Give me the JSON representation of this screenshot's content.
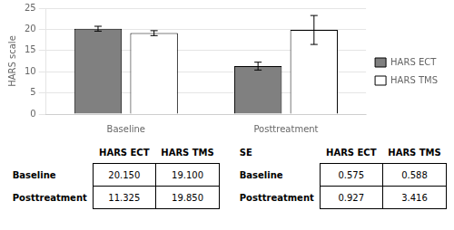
{
  "chart_data": {
    "type": "bar",
    "categories": [
      "Baseline",
      "Posttreatment"
    ],
    "series": [
      {
        "name": "HARS ECT",
        "color": "#808080",
        "values": [
          20.15,
          11.325
        ],
        "errors": [
          0.575,
          0.927
        ]
      },
      {
        "name": "HARS TMS",
        "color": "#ffffff",
        "values": [
          19.1,
          19.85
        ],
        "errors": [
          0.588,
          3.416
        ]
      }
    ],
    "ylabel": "HARS scale",
    "ylim": [
      0,
      25
    ],
    "yticks": [
      0,
      5,
      10,
      15,
      20,
      25
    ],
    "grid": true,
    "legend": "right",
    "tables": [
      {
        "columns": [
          "HARS ECT",
          "HARS TMS"
        ],
        "rows": [
          "Baseline",
          "Posttreatment"
        ],
        "cells": [
          [
            "20.150",
            "19.100"
          ],
          [
            "11.325",
            "19.850"
          ]
        ]
      },
      {
        "title": "SE",
        "columns": [
          "HARS ECT",
          "HARS TMS"
        ],
        "rows": [
          "Baseline",
          "Posttreatment"
        ],
        "cells": [
          [
            "0.575",
            "0.588"
          ],
          [
            "0.927",
            "3.416"
          ]
        ]
      }
    ]
  }
}
